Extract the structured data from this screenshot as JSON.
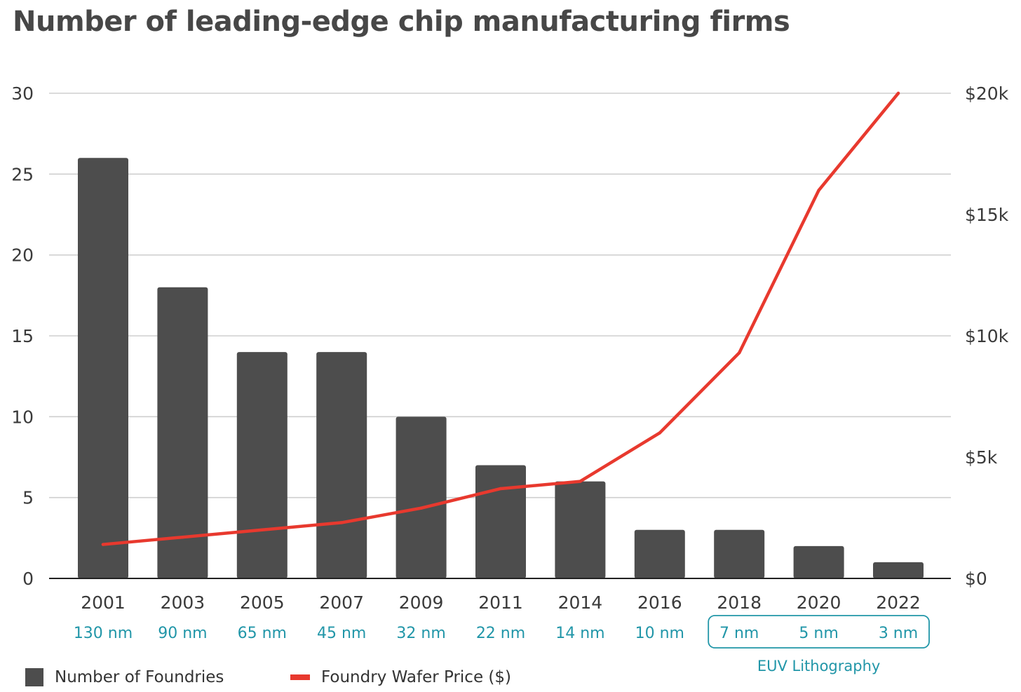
{
  "chart_data": {
    "type": "bar",
    "title": "Number of leading-edge chip manufacturing firms",
    "categories": [
      "2001",
      "2003",
      "2005",
      "2007",
      "2009",
      "2011",
      "2014",
      "2016",
      "2018",
      "2020",
      "2022"
    ],
    "node_labels": [
      "130 nm",
      "90 nm",
      "65 nm",
      "45 nm",
      "32 nm",
      "22 nm",
      "14 nm",
      "10 nm",
      "7 nm",
      "5 nm",
      "3 nm"
    ],
    "series": [
      {
        "name": "Number of Foundries",
        "type": "bar",
        "axis": "left",
        "color": "#4d4d4d",
        "values": [
          26,
          18,
          14,
          14,
          10,
          7,
          6,
          3,
          3,
          2,
          1
        ]
      },
      {
        "name": "Foundry Wafer Price ($)",
        "type": "line",
        "axis": "right",
        "color": "#e8392e",
        "values": [
          1400,
          1700,
          2000,
          2300,
          2900,
          3700,
          4000,
          6000,
          9300,
          16000,
          20000
        ]
      }
    ],
    "y_left": {
      "lim": [
        0,
        30
      ],
      "ticks": [
        0,
        5,
        10,
        15,
        20,
        25,
        30
      ],
      "tick_labels": [
        "0",
        "5",
        "10",
        "15",
        "20",
        "25",
        "30"
      ]
    },
    "y_right": {
      "lim": [
        0,
        20000
      ],
      "ticks": [
        0,
        5000,
        10000,
        15000,
        20000
      ],
      "tick_labels": [
        "$0",
        "$5k",
        "$10k",
        "$15k",
        "$20k"
      ]
    },
    "annotation": {
      "label": "EUV Lithography",
      "nodes": [
        "7 nm",
        "5 nm",
        "3 nm"
      ]
    },
    "grid": true,
    "legend_position": "bottom-left",
    "node_label_color": "#2196a8"
  }
}
